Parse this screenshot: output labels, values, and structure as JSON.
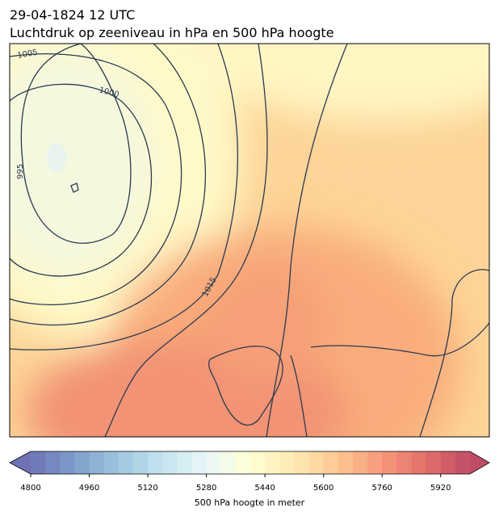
{
  "header": {
    "date": "29-04-1824 12 UTC",
    "title": "Luchtdruk op zeeniveau in hPa en 500 hPa hoogte"
  },
  "map": {
    "contour_labels": [
      "1005",
      "1000",
      "995",
      "1015"
    ]
  },
  "colorbar": {
    "label": "500 hPa hoogte in meter",
    "range": [
      4800,
      6000
    ],
    "ticks": [
      4800,
      4960,
      5120,
      5280,
      5440,
      5600,
      5760,
      5920
    ],
    "colormap": "RdYlBu_r"
  }
}
